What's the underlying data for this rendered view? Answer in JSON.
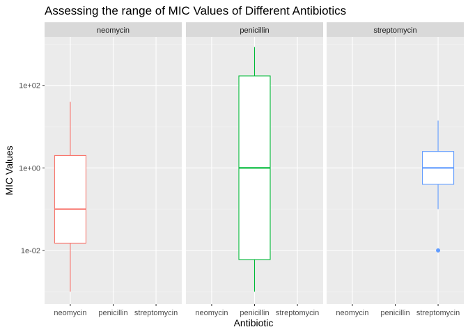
{
  "chart_data": {
    "type": "boxplot",
    "title": "Assessing the range of MIC Values of Different Antibiotics",
    "xlabel": "Antibiotic",
    "ylabel": "MIC Values",
    "y_scale": "log10",
    "ylim": [
      0.0005,
      1500
    ],
    "y_ticks": [
      {
        "value": 0.01,
        "label": "1e-02"
      },
      {
        "value": 1,
        "label": "1e+00"
      },
      {
        "value": 100,
        "label": "1e+02"
      }
    ],
    "categories": [
      "neomycin",
      "penicillin",
      "streptomycin"
    ],
    "facets": [
      "neomycin",
      "penicillin",
      "streptomycin"
    ],
    "grid": true,
    "legend": "none",
    "boxes": [
      {
        "facet": "neomycin",
        "category": "neomycin",
        "color": "#F8766D",
        "min": 0.001,
        "q1": 0.015,
        "median": 0.1,
        "q3": 2,
        "max": 40,
        "outliers": []
      },
      {
        "facet": "penicillin",
        "category": "penicillin",
        "color": "#00BA38",
        "min": 0.001,
        "q1": 0.006,
        "median": 1,
        "q3": 170,
        "max": 850,
        "outliers": []
      },
      {
        "facet": "streptomycin",
        "category": "streptomycin",
        "color": "#619CFF",
        "min": 0.1,
        "q1": 0.4,
        "median": 1,
        "q3": 2.5,
        "max": 14,
        "outliers": [
          0.01
        ]
      }
    ]
  }
}
